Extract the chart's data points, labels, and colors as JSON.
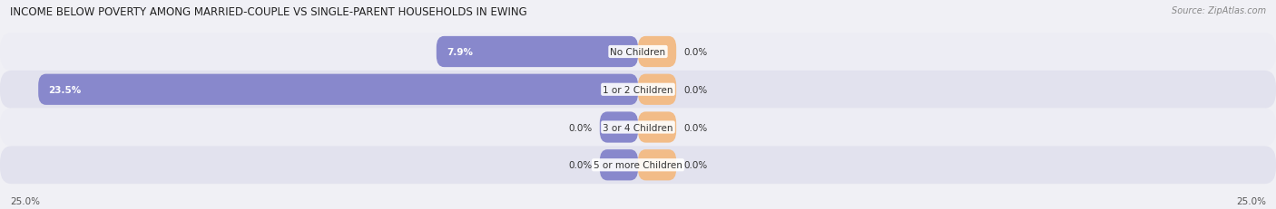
{
  "title": "INCOME BELOW POVERTY AMONG MARRIED-COUPLE VS SINGLE-PARENT HOUSEHOLDS IN EWING",
  "source": "Source: ZipAtlas.com",
  "categories": [
    "No Children",
    "1 or 2 Children",
    "3 or 4 Children",
    "5 or more Children"
  ],
  "married_values": [
    7.9,
    23.5,
    0.0,
    0.0
  ],
  "single_values": [
    0.0,
    0.0,
    0.0,
    0.0
  ],
  "married_color": "#8888cc",
  "single_color": "#f2bc88",
  "row_bg_colors": [
    "#ededf4",
    "#e2e2ee"
  ],
  "fig_bg_color": "#f0f0f5",
  "axis_limit": 25.0,
  "title_fontsize": 8.5,
  "source_fontsize": 7,
  "label_fontsize": 7.5,
  "category_fontsize": 7.5,
  "legend_fontsize": 7.5,
  "axis_label_fontsize": 7.5,
  "left_axis_label": "25.0%",
  "right_axis_label": "25.0%",
  "min_bar_width": 1.5
}
